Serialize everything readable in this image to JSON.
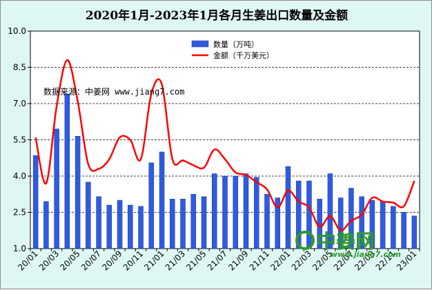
{
  "chart_data": {
    "type": "bar+line",
    "title": "2020年1月-2023年1月各月生姜出口数量及金额",
    "ylim": [
      1.0,
      10.0
    ],
    "yticks": [
      "1.0",
      "2.5",
      "4.0",
      "5.5",
      "7.0",
      "8.5",
      "10.0"
    ],
    "categories": [
      "20/01",
      "20/02",
      "20/03",
      "20/04",
      "20/05",
      "20/06",
      "20/07",
      "20/08",
      "20/09",
      "20/10",
      "20/11",
      "20/12",
      "21/01",
      "21/02",
      "21/03",
      "21/04",
      "21/05",
      "21/06",
      "21/07",
      "21/08",
      "21/09",
      "21/10",
      "21/11",
      "21/12",
      "22/01",
      "22/02",
      "22/03",
      "22/04",
      "22/05",
      "22/06",
      "22/07",
      "22/08",
      "22/09",
      "22/10",
      "22/11",
      "22/12",
      "23/01"
    ],
    "xtick_labels": [
      "20/01",
      "20/03",
      "20/05",
      "20/07",
      "20/09",
      "20/11",
      "21/01",
      "21/03",
      "21/05",
      "21/07",
      "21/09",
      "21/11",
      "22/01",
      "22/03",
      "22/05",
      "22/07",
      "22/09",
      "22/11",
      "23/01"
    ],
    "series": [
      {
        "name": "数量（万吨）",
        "kind": "bar",
        "color": "#2f5be0",
        "values": [
          4.85,
          2.95,
          5.95,
          7.4,
          5.65,
          3.75,
          3.15,
          2.8,
          3.0,
          2.8,
          2.75,
          4.55,
          5.0,
          3.05,
          3.05,
          3.25,
          3.15,
          4.1,
          4.0,
          4.0,
          4.1,
          3.95,
          3.25,
          3.1,
          4.4,
          3.8,
          3.8,
          3.05,
          4.1,
          3.1,
          3.5,
          3.15,
          3.0,
          2.95,
          2.75,
          2.5,
          2.35
        ]
      },
      {
        "name": "金额（千万美元）",
        "kind": "line",
        "color": "#ff0000",
        "values": [
          5.6,
          3.7,
          6.9,
          8.8,
          7.1,
          4.5,
          4.3,
          4.7,
          5.6,
          5.5,
          4.7,
          7.4,
          7.8,
          4.7,
          4.65,
          4.45,
          4.35,
          5.1,
          4.7,
          4.15,
          4.05,
          3.75,
          3.45,
          2.7,
          3.4,
          2.95,
          2.7,
          1.9,
          2.35,
          1.75,
          2.15,
          2.4,
          3.1,
          2.95,
          2.9,
          2.75,
          3.8
        ]
      }
    ]
  },
  "source_note": "数据来源：中姜网 www.jiang7.com",
  "watermark": {
    "name": "中姜网",
    "url": "www.jiang7.com"
  }
}
